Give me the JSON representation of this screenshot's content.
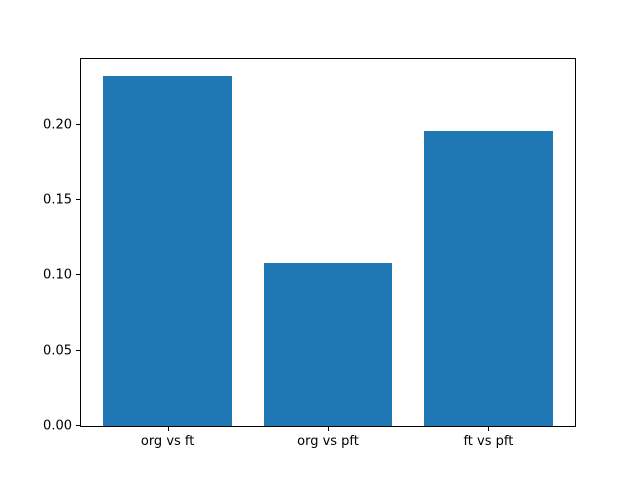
{
  "chart_data": {
    "type": "bar",
    "title": "",
    "xlabel": "",
    "ylabel": "",
    "categories": [
      "org vs ft",
      "org vs pft",
      "ft vs pft"
    ],
    "x": [
      0,
      1,
      2
    ],
    "values": [
      0.232,
      0.108,
      0.196
    ],
    "bar_width": 0.8,
    "bar_color": "#1f77b4",
    "xlim": [
      -0.54,
      2.54
    ],
    "ylim": [
      0,
      0.2436
    ],
    "yticks": [
      0,
      0.05,
      0.1,
      0.15,
      0.2
    ],
    "ytick_decimals": 2,
    "grid": false,
    "legend": null,
    "background_color": "#ffffff",
    "spine_color": "#000000"
  }
}
